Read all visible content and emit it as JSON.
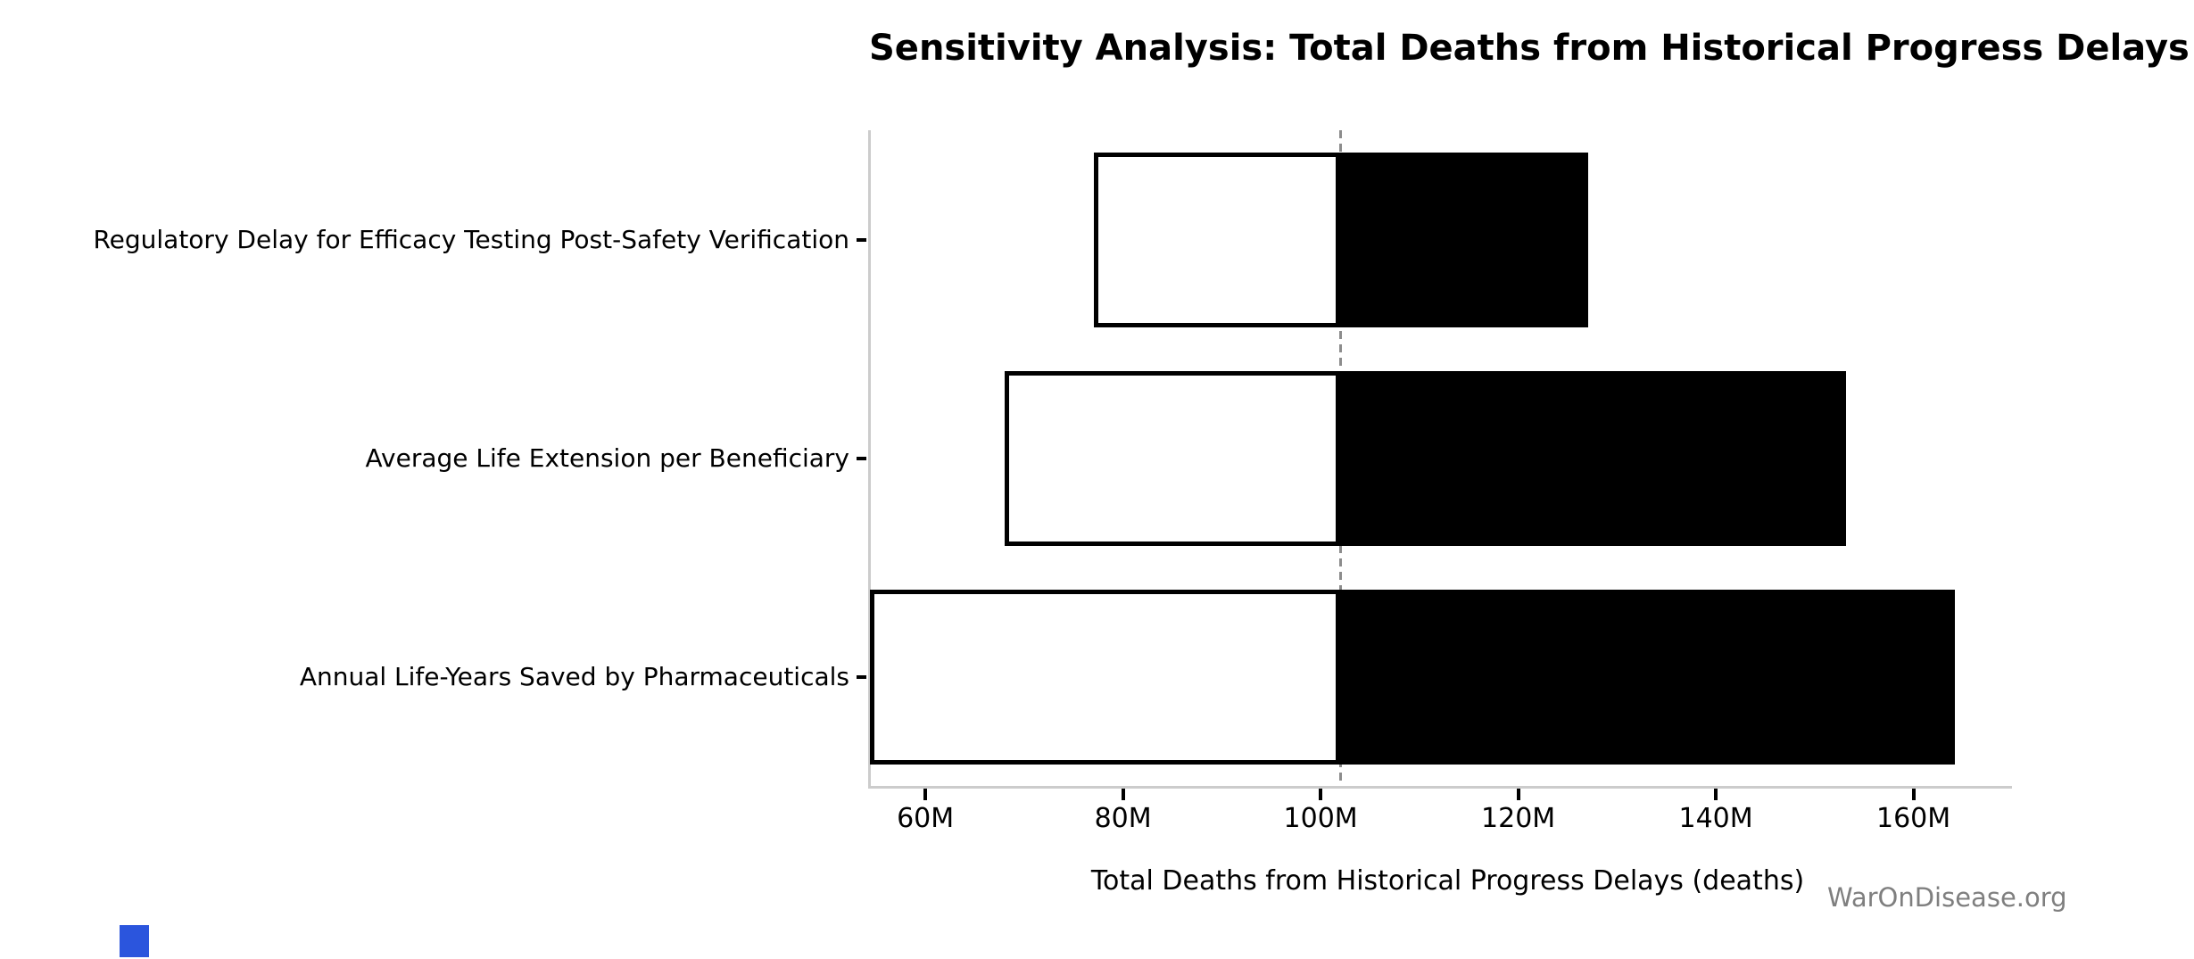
{
  "figure": {
    "title": "Sensitivity Analysis: Total Deaths from Historical Progress Delays",
    "xlabel": "Total Deaths from Historical Progress Delays (deaths)",
    "watermark": "WarOnDisease.org"
  },
  "chart_data": {
    "type": "bar",
    "subtype": "tornado-sensitivity",
    "orientation": "horizontal",
    "title": "Sensitivity Analysis: Total Deaths from Historical Progress Delays",
    "xlabel": "Total Deaths from Historical Progress Delays (deaths)",
    "ylabel": "",
    "categories": [
      "Regulatory Delay for Efficacy Testing Post-Safety Verification",
      "Average Life Extension per Beneficiary",
      "Annual Life-Years Saved by Pharmaceuticals"
    ],
    "unit": "M deaths",
    "baseline_value_m": 102.0,
    "series": [
      {
        "name": "low-estimate",
        "fill": "#ffffff",
        "values_m": [
          77.1,
          68.0,
          54.4
        ]
      },
      {
        "name": "high-estimate",
        "fill": "#000000",
        "values_m": [
          127.1,
          153.2,
          164.2
        ]
      }
    ],
    "xlim_m": [
      54.3,
      169.7
    ],
    "xticks_m": [
      60,
      80,
      100,
      120,
      140,
      160
    ],
    "xtick_labels": [
      "60M",
      "80M",
      "100M",
      "120M",
      "140M",
      "160M"
    ],
    "grid": false,
    "legend": "none",
    "baseline_style": "vertical dashed gray line"
  },
  "colors": {
    "background": "#ffffff",
    "bar_fill_low": "#ffffff",
    "bar_fill_high": "#000000",
    "bar_edge": "#000000",
    "baseline_dash": "#8c8c8c",
    "spine": "#cccccc",
    "tick": "#000000",
    "text": "#000000",
    "watermark": "#7f7f7f",
    "corner_marker": "#2b55dd"
  }
}
